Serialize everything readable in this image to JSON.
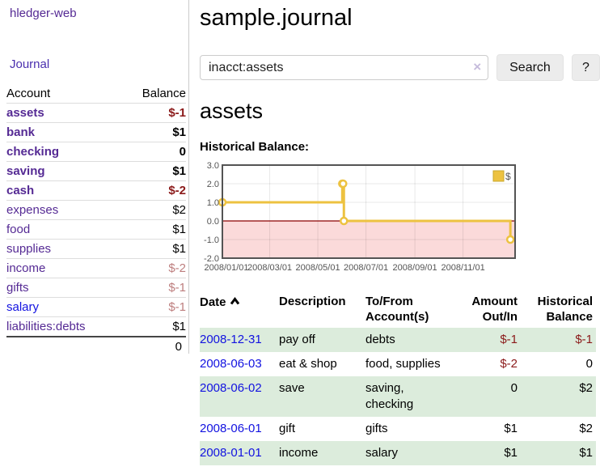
{
  "app": {
    "brand": "hledger-web",
    "nav_journal": "Journal"
  },
  "sidebar": {
    "header": {
      "account": "Account",
      "balance": "Balance"
    },
    "accounts": [
      {
        "name": "assets",
        "balance": "$-1",
        "indent": 1,
        "bold": true,
        "neg": "strong"
      },
      {
        "name": "bank",
        "balance": "$1",
        "indent": 2,
        "bold": true,
        "neg": ""
      },
      {
        "name": "checking",
        "balance": "0",
        "indent": 3,
        "bold": true,
        "neg": ""
      },
      {
        "name": "saving",
        "balance": "$1",
        "indent": 3,
        "bold": true,
        "neg": ""
      },
      {
        "name": "cash",
        "balance": "$-2",
        "indent": 2,
        "bold": true,
        "neg": "strong"
      },
      {
        "name": "expenses",
        "balance": "$2",
        "indent": 1,
        "bold": false,
        "neg": ""
      },
      {
        "name": "food",
        "balance": "$1",
        "indent": 2,
        "bold": false,
        "neg": ""
      },
      {
        "name": "supplies",
        "balance": "$1",
        "indent": 2,
        "bold": false,
        "neg": ""
      },
      {
        "name": "income",
        "balance": "$-2",
        "indent": 1,
        "bold": false,
        "neg": "muted"
      },
      {
        "name": "gifts",
        "balance": "$-1",
        "indent": 2,
        "bold": false,
        "neg": "muted"
      },
      {
        "name": "salary",
        "balance": "$-1",
        "indent": 2,
        "bold": false,
        "neg": "muted",
        "link": "blue"
      },
      {
        "name": "liabilities:debts",
        "balance": "$1",
        "indent": 1,
        "bold": false,
        "neg": ""
      }
    ],
    "total": "0"
  },
  "header": {
    "title": "sample.journal"
  },
  "search": {
    "value": "inacct:assets",
    "clear_icon": "×",
    "search_label": "Search",
    "help_label": "?"
  },
  "account_page": {
    "heading": "assets",
    "chart_label": "Historical Balance:"
  },
  "chart_data": {
    "type": "line",
    "step": true,
    "title": "Historical Balance",
    "series": [
      {
        "name": "$",
        "color": "#edc240",
        "points": [
          [
            "2008-01-01",
            1
          ],
          [
            "2008-06-01",
            2
          ],
          [
            "2008-06-02",
            2
          ],
          [
            "2008-06-03",
            0
          ],
          [
            "2008-12-31",
            -1
          ]
        ]
      }
    ],
    "x_start": "2008-01-01",
    "x_span_days": 371,
    "ylim": [
      -2,
      3
    ],
    "yticks": [
      3,
      2,
      1,
      0,
      -1,
      -2
    ],
    "xticks": [
      "2008/01/01",
      "2008/03/01",
      "2008/05/01",
      "2008/07/01",
      "2008/09/01",
      "2008/11/01"
    ],
    "negative_fill": "#fbdada",
    "zero_line_color": "#8b0000",
    "grid_color": "rgba(0,0,0,0.09)",
    "border_color": "#545454",
    "tick_color": "#545454",
    "legend": {
      "label": "$",
      "position": "top-right"
    }
  },
  "register": {
    "sort": {
      "column": "Date",
      "direction": "asc",
      "icon": "chevron-up"
    },
    "columns": [
      "Date",
      "Description",
      "To/From Account(s)",
      "Amount Out/In",
      "Historical Balance"
    ],
    "rows": [
      {
        "date": "2008-12-31",
        "description": "pay off",
        "accounts": "debts",
        "amount": "$-1",
        "balance": "$-1",
        "amount_negative": true,
        "balance_negative": true
      },
      {
        "date": "2008-06-03",
        "description": "eat & shop",
        "accounts": "food, supplies",
        "amount": "$-2",
        "balance": "0",
        "amount_negative": true,
        "balance_negative": false
      },
      {
        "date": "2008-06-02",
        "description": "save",
        "accounts": "saving, checking",
        "amount": "0",
        "balance": "$2",
        "amount_negative": false,
        "balance_negative": false
      },
      {
        "date": "2008-06-01",
        "description": "gift",
        "accounts": "gifts",
        "amount": "$1",
        "balance": "$2",
        "amount_negative": false,
        "balance_negative": false
      },
      {
        "date": "2008-01-01",
        "description": "income",
        "accounts": "salary",
        "amount": "$1",
        "balance": "$1",
        "amount_negative": false,
        "balance_negative": false
      }
    ]
  }
}
